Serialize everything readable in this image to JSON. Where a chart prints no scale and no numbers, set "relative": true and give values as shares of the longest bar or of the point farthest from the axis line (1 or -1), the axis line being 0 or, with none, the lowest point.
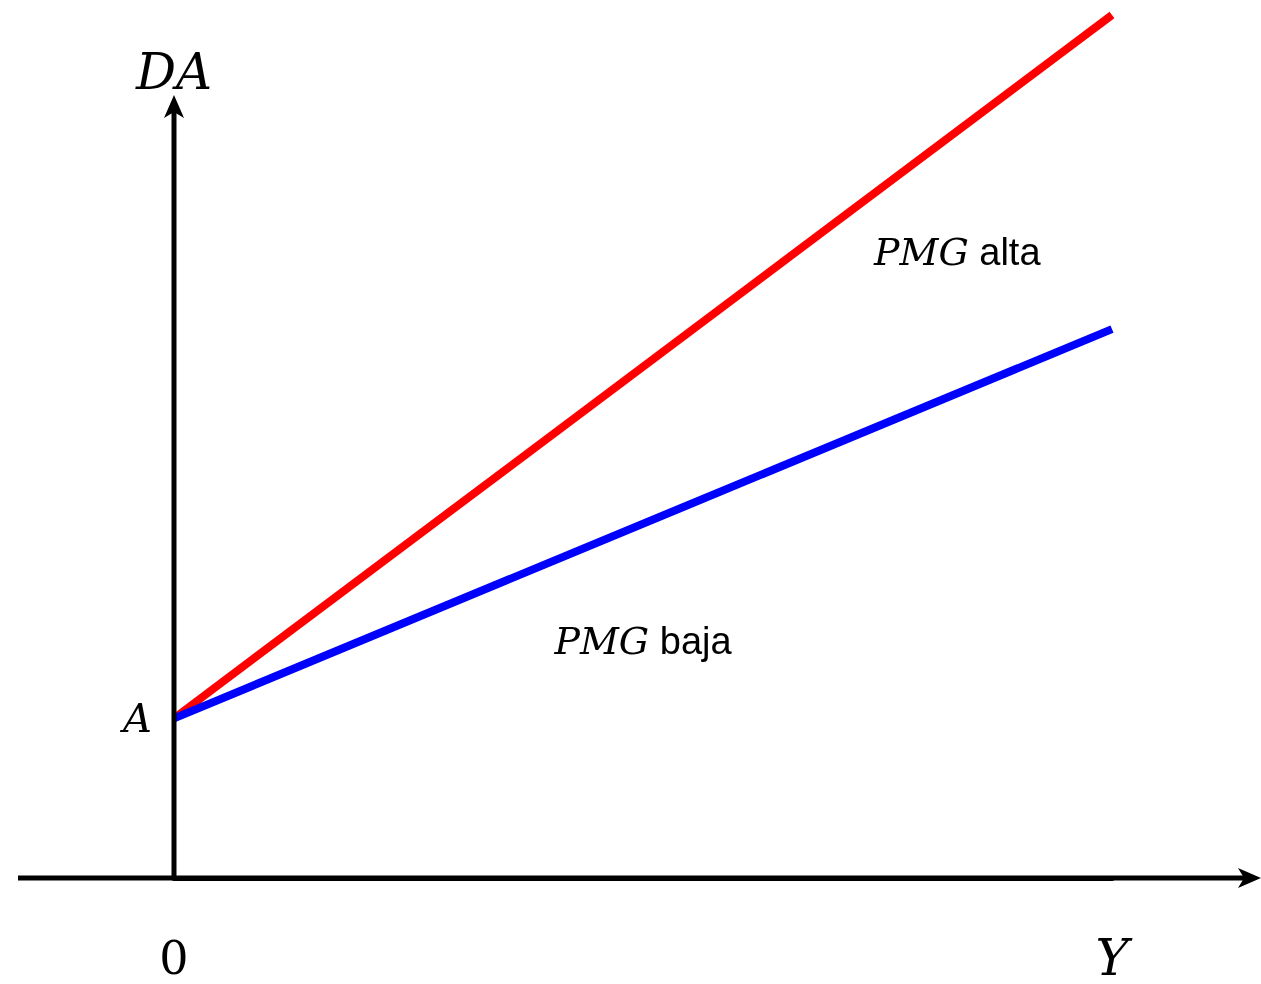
{
  "chart_data": {
    "type": "line",
    "xlabel": "Y",
    "ylabel": "DA",
    "relative": true,
    "categories": [
      null,
      null
    ],
    "series": [
      {
        "name": "PMG alta",
        "color": "#ff0000",
        "values": [
          0.185,
          1
        ]
      },
      {
        "name": "PMG baja",
        "color": "#0000ff",
        "values": [
          0.185,
          0.636
        ]
      }
    ],
    "annotations": [
      "A",
      "0"
    ]
  }
}
